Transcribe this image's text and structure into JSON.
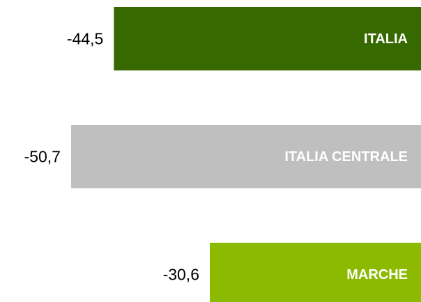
{
  "chart_data": {
    "type": "hbar",
    "categories": [
      "ITALIA",
      "ITALIA CENTRALE",
      "MARCHE"
    ],
    "values": [
      -44.5,
      -50.7,
      -30.6
    ],
    "value_labels": [
      "-44,5",
      "-50,7",
      "-30,6"
    ],
    "colors": [
      "#366a00",
      "#bfbfbf",
      "#8cba00"
    ],
    "xlim": [
      -51,
      0
    ]
  }
}
